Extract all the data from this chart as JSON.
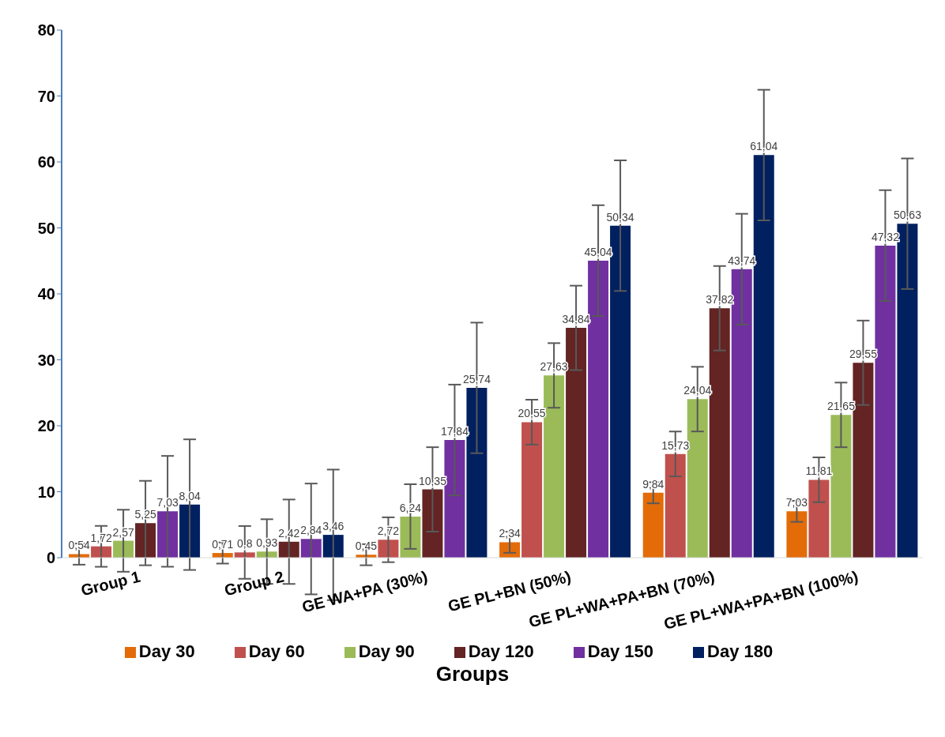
{
  "chart_data": {
    "type": "bar",
    "xlabel": "Groups",
    "categories": [
      "Group 1",
      "Group 2",
      "GE WA+PA (30%)",
      "GE PL+BN (50%)",
      "GE PL+WA+PA+BN (70%)",
      "GE PL+WA+PA+BN  (100%)"
    ],
    "series": [
      {
        "name": "Day 30",
        "color": "#e36c09",
        "values": [
          0.54,
          0.71,
          0.45,
          2.34,
          9.84,
          7.03
        ],
        "errors": [
          1.6,
          1.6,
          1.6,
          1.6,
          1.6,
          1.6
        ],
        "value_labels": [
          "0,54",
          "0,71",
          "0,45",
          "2,34",
          "9,84",
          "7,03"
        ]
      },
      {
        "name": "Day 60",
        "color": "#c0504d",
        "values": [
          1.72,
          0.8,
          2.72,
          20.55,
          15.73,
          11.81
        ],
        "errors": [
          3.1,
          4,
          3.4,
          3.4,
          3.4,
          3.4
        ],
        "value_labels": [
          "1,72",
          "0,8",
          "2,72",
          "20,55",
          "15,73",
          "11,81"
        ]
      },
      {
        "name": "Day 90",
        "color": "#9bbb59",
        "values": [
          2.57,
          0.93,
          6.24,
          27.63,
          24.04,
          21.65
        ],
        "errors": [
          4.7,
          4.9,
          4.9,
          4.9,
          4.9,
          4.9
        ],
        "value_labels": [
          "2,57",
          "0,93",
          "6,24",
          "27,63",
          "24,04",
          "21,65"
        ]
      },
      {
        "name": "Day 120",
        "color": "#632423",
        "values": [
          5.25,
          2.42,
          10.35,
          34.84,
          37.82,
          29.55
        ],
        "errors": [
          6.4,
          6.4,
          6.4,
          6.4,
          6.4,
          6.4
        ],
        "value_labels": [
          "5,25",
          "2,42",
          "10,35",
          "34,84",
          "37,82",
          "29,55"
        ]
      },
      {
        "name": "Day 150",
        "color": "#7030a0",
        "values": [
          7.03,
          2.84,
          17.84,
          45.04,
          43.74,
          47.32
        ],
        "errors": [
          8.4,
          8.4,
          8.4,
          8.4,
          8.4,
          8.4
        ],
        "value_labels": [
          "7,03",
          "2,84",
          "17,84",
          "45,04",
          "43,74",
          "47,32"
        ]
      },
      {
        "name": "Day 180",
        "color": "#002060",
        "values": [
          8.04,
          3.46,
          25.74,
          50.34,
          61.04,
          50.63
        ],
        "errors": [
          9.9,
          9.9,
          9.9,
          9.9,
          9.9,
          9.9
        ],
        "value_labels": [
          "8,04",
          "3,46",
          "25,74",
          "50,34",
          "61,04",
          "50,63"
        ]
      }
    ],
    "ylim": [
      0,
      80
    ],
    "yticks": [
      0,
      10,
      20,
      30,
      40,
      50,
      60,
      70,
      80
    ],
    "grid": false,
    "legend": "bottom"
  }
}
